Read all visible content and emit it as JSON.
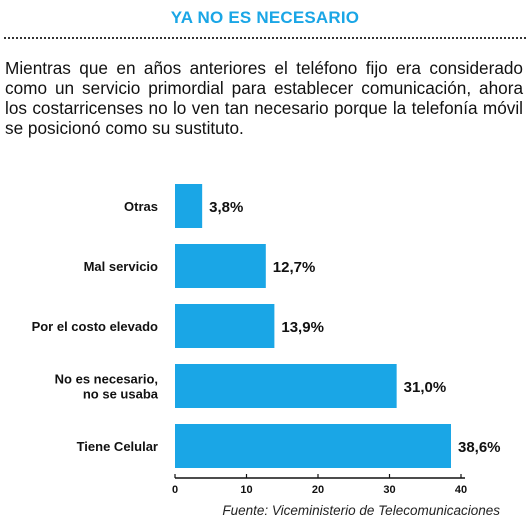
{
  "header": {
    "title": "YA NO ES NECESARIO",
    "intro": "Mientras que en años anteriores el teléfono fijo era considerado como un servicio primordial para establecer comunicación, ahora los costarricenses no lo ven tan necesario porque la telefonía móvil se posicionó como su sustituto."
  },
  "source": "Fuente: Viceministerio de Telecomunicaciones",
  "chart_data": {
    "type": "bar",
    "orientation": "horizontal",
    "categories": [
      "Otras",
      "Mal servicio",
      "Por el costo elevado",
      "No es necesario,\nno se usaba",
      "Tiene Celular"
    ],
    "values": [
      3.8,
      12.7,
      13.9,
      31.0,
      38.6
    ],
    "value_labels": [
      "3,8%",
      "12,7%",
      "13,9%",
      "31,0%",
      "38,6%"
    ],
    "xlim": [
      0,
      40
    ],
    "xticks": [
      0,
      10,
      20,
      30,
      40
    ],
    "bar_color": "#1aa6e6",
    "grid": false
  }
}
